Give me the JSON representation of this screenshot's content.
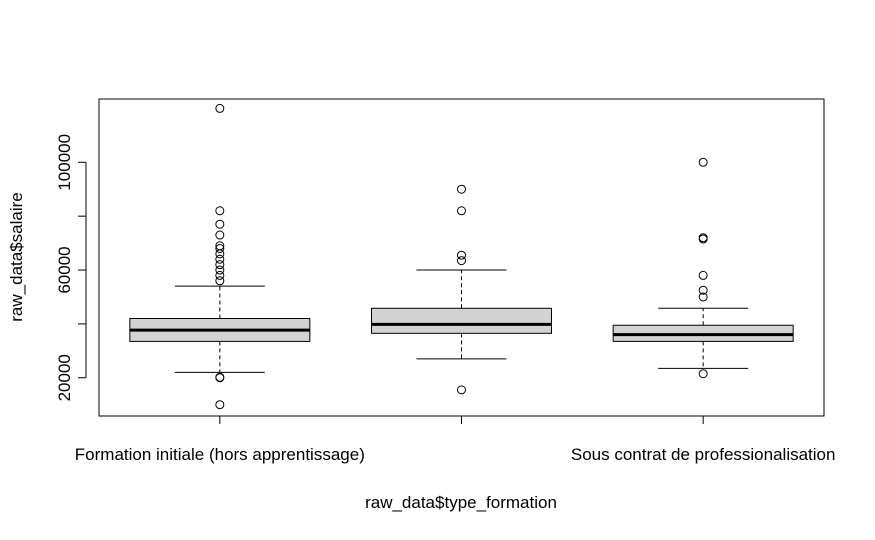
{
  "chart_data": {
    "type": "boxplot",
    "title": "",
    "xlabel": "raw_data$type_formation",
    "ylabel": "raw_data$salaire",
    "ylim": [
      5800,
      123500
    ],
    "grid": false,
    "y_ticks": [
      20000,
      60000,
      100000
    ],
    "y_tick_labels": [
      "20000",
      "60000",
      "100000"
    ],
    "x_tick_labels": [
      "Formation initiale (hors apprentissage)",
      "",
      "Sous contrat de professionalisation"
    ],
    "colors": {
      "box_fill": "#d3d3d3",
      "line": "#000000"
    },
    "groups": [
      {
        "whisker_low": 22000,
        "q1": 33500,
        "median": 37700,
        "q3": 42000,
        "whisker_high": 54000,
        "outliers": [
          10000,
          20000,
          20200,
          56000,
          58000,
          60000,
          62000,
          64000,
          66000,
          68000,
          69000,
          73000,
          77000,
          82000,
          120000
        ]
      },
      {
        "whisker_low": 27000,
        "q1": 36500,
        "median": 39800,
        "q3": 45800,
        "whisker_high": 60000,
        "outliers": [
          15500,
          63500,
          65500,
          82000,
          90000
        ]
      },
      {
        "whisker_low": 23500,
        "q1": 33500,
        "median": 36000,
        "q3": 39500,
        "whisker_high": 45800,
        "outliers": [
          21500,
          50000,
          52500,
          58000,
          71500,
          72000,
          100000
        ]
      }
    ]
  }
}
